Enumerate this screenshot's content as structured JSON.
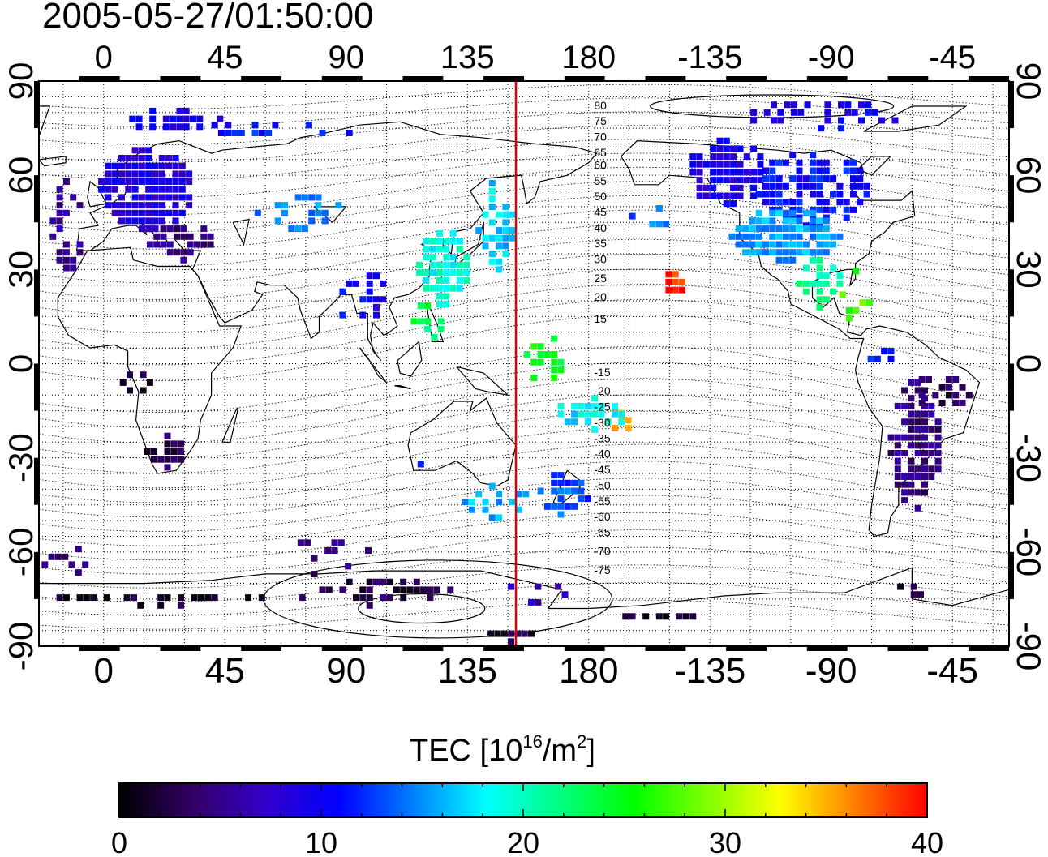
{
  "title": "2005-05-27/01:50:00",
  "map": {
    "lon_ticks": [
      "0",
      "45",
      "90",
      "135",
      "180",
      "-135",
      "-90",
      "-45"
    ],
    "lon_values": [
      0,
      45,
      90,
      135,
      180,
      225,
      270,
      315
    ],
    "lat_ticks": [
      "90",
      "60",
      "30",
      "0",
      "-30",
      "-60",
      "-90"
    ],
    "lat_values": [
      90,
      60,
      30,
      0,
      -30,
      -60,
      -90
    ],
    "lon_range": [
      -24,
      336
    ],
    "lat_range": [
      -90,
      90
    ],
    "meridian_line_lon": 153,
    "meridian_line_color": "#e00000",
    "contour_labels": [
      "80",
      "75",
      "70",
      "65",
      "60",
      "55",
      "50",
      "45",
      "40",
      "35",
      "30",
      "25",
      "20",
      "15",
      "-15",
      "-20",
      "-25",
      "-30",
      "-35",
      "-40",
      "-45",
      "-50",
      "-55",
      "-60",
      "-65",
      "-70",
      "-75"
    ],
    "contour_label_lats": [
      81,
      76,
      71,
      66,
      62,
      57,
      52,
      47,
      42,
      37,
      32,
      26,
      20,
      13,
      -4,
      -10,
      -15,
      -20,
      -25,
      -30,
      -35,
      -40,
      -45,
      -50,
      -55,
      -61,
      -67
    ]
  },
  "colorbar": {
    "title_main": "TEC  [10",
    "title_exp1": "16",
    "title_mid": "/m",
    "title_exp2": "2",
    "title_end": "]",
    "tick_labels": [
      "0",
      "10",
      "20",
      "30",
      "40"
    ],
    "tick_values": [
      0,
      10,
      20,
      30,
      40
    ],
    "range": [
      0,
      40
    ],
    "stops": [
      "#000000",
      "#330066",
      "#3300cc",
      "#0000ff",
      "#0080ff",
      "#00ffff",
      "#00ff80",
      "#00ff00",
      "#80ff00",
      "#ffff00",
      "#ff8000",
      "#ff0000"
    ]
  }
}
